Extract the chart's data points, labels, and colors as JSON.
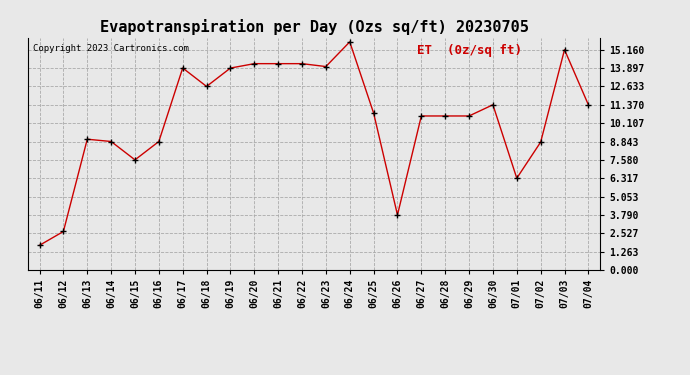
{
  "title": "Evapotranspiration per Day (Ozs sq/ft) 20230705",
  "copyright": "Copyright 2023 Cartronics.com",
  "legend_label": "ET  (0z/sq ft)",
  "x_labels": [
    "06/11",
    "06/12",
    "06/13",
    "06/14",
    "06/15",
    "06/16",
    "06/17",
    "06/18",
    "06/19",
    "06/20",
    "06/21",
    "06/22",
    "06/23",
    "06/24",
    "06/25",
    "06/26",
    "06/27",
    "06/28",
    "06/29",
    "06/30",
    "07/01",
    "07/02",
    "07/03",
    "07/04"
  ],
  "y_values": [
    1.7,
    2.65,
    9.0,
    8.843,
    7.58,
    8.843,
    13.9,
    12.633,
    13.897,
    14.2,
    14.2,
    14.2,
    14.0,
    15.7,
    10.8,
    3.79,
    10.6,
    10.6,
    10.6,
    11.37,
    6.317,
    8.8,
    15.16,
    11.37
  ],
  "line_color": "#cc0000",
  "marker_color": "#000000",
  "background_color": "#e8e8e8",
  "plot_bg_color": "#e8e8e8",
  "grid_color": "#aaaaaa",
  "yticks": [
    0.0,
    1.263,
    2.527,
    3.79,
    5.053,
    6.317,
    7.58,
    8.843,
    10.107,
    11.37,
    12.633,
    13.897,
    15.16
  ],
  "ylim_min": 0.0,
  "ylim_max": 16.0,
  "title_fontsize": 11,
  "tick_fontsize": 7,
  "copyright_fontsize": 6.5,
  "legend_fontsize": 9
}
